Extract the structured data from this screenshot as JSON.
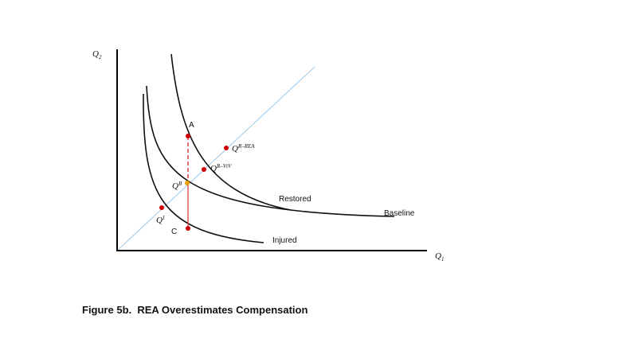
{
  "axes": {
    "y_label": {
      "base": "Q",
      "sub": "2"
    },
    "x_label": {
      "base": "Q",
      "sub": "1"
    }
  },
  "curves": {
    "restored": "Restored",
    "baseline": "Baseline",
    "injured": "Injured"
  },
  "points": {
    "a": "A",
    "c": "C",
    "q_r_rea": {
      "base": "Q",
      "sup": "R–REA"
    },
    "q_r_vtv": {
      "base": "Q",
      "sup": "R–VtV"
    },
    "q_b": {
      "base": "Q",
      "sup": "B"
    },
    "q_i": {
      "base": "Q",
      "sup": "I"
    }
  },
  "caption": "Figure 5b.  REA Overestimates Compensation"
}
